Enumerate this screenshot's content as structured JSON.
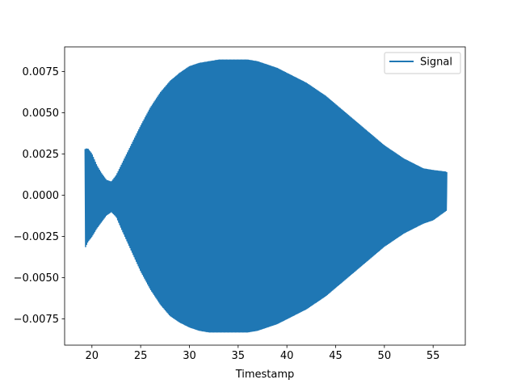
{
  "chart_data": {
    "type": "line",
    "title": "",
    "xlabel": "Timestamp",
    "ylabel": "",
    "xlim": [
      17.2,
      58.3
    ],
    "ylim": [
      -0.0091,
      0.009
    ],
    "grid": false,
    "legend": {
      "position": "top-right",
      "entries": [
        "Signal"
      ]
    },
    "x_ticks": [
      20,
      25,
      30,
      35,
      40,
      45,
      50,
      55
    ],
    "x_tick_labels": [
      "20",
      "25",
      "30",
      "35",
      "40",
      "45",
      "50",
      "55"
    ],
    "y_ticks": [
      0.0075,
      0.005,
      0.0025,
      0.0,
      -0.0025,
      -0.005,
      -0.0075
    ],
    "y_tick_labels": [
      "0.0075",
      "0.0050",
      "0.0025",
      "0.0000",
      "−0.0025",
      "−0.0050",
      "−0.0075"
    ],
    "series": [
      {
        "name": "Signal",
        "color": "#1f77b4",
        "x_start": 19.3,
        "x_end": 56.4,
        "envelope": {
          "x": [
            19.3,
            19.6,
            20.0,
            20.5,
            21.0,
            21.5,
            22.0,
            22.5,
            23.0,
            24.0,
            25.0,
            26.0,
            27.0,
            28.0,
            29.0,
            30.0,
            31.0,
            32.0,
            33.0,
            34.0,
            35.0,
            36.0,
            37.0,
            38.0,
            39.0,
            40.0,
            41.0,
            42.0,
            43.0,
            44.0,
            45.0,
            46.0,
            47.0,
            48.0,
            49.0,
            50.0,
            51.0,
            52.0,
            53.0,
            54.0,
            55.0,
            56.4
          ],
          "upper": [
            0.0028,
            0.0028,
            0.0025,
            0.0018,
            0.0013,
            0.0009,
            0.0008,
            0.0012,
            0.0018,
            0.003,
            0.0042,
            0.0053,
            0.0062,
            0.0069,
            0.0074,
            0.0078,
            0.008,
            0.0081,
            0.0082,
            0.0082,
            0.0082,
            0.0082,
            0.0081,
            0.0079,
            0.0077,
            0.0074,
            0.0071,
            0.0068,
            0.0064,
            0.006,
            0.0055,
            0.005,
            0.0045,
            0.004,
            0.0035,
            0.003,
            0.0026,
            0.0022,
            0.0019,
            0.0016,
            0.0015,
            0.0014
          ],
          "lower": [
            -0.0032,
            -0.0028,
            -0.0025,
            -0.002,
            -0.0016,
            -0.0012,
            -0.001,
            -0.0013,
            -0.002,
            -0.0033,
            -0.0046,
            -0.0057,
            -0.0066,
            -0.0073,
            -0.0077,
            -0.008,
            -0.0082,
            -0.0083,
            -0.0083,
            -0.0083,
            -0.0083,
            -0.0083,
            -0.0082,
            -0.008,
            -0.0078,
            -0.0075,
            -0.0072,
            -0.0069,
            -0.0065,
            -0.0061,
            -0.0056,
            -0.0051,
            -0.0046,
            -0.0041,
            -0.0036,
            -0.0031,
            -0.0027,
            -0.0023,
            -0.002,
            -0.0017,
            -0.0015,
            -0.0009
          ]
        }
      }
    ]
  }
}
